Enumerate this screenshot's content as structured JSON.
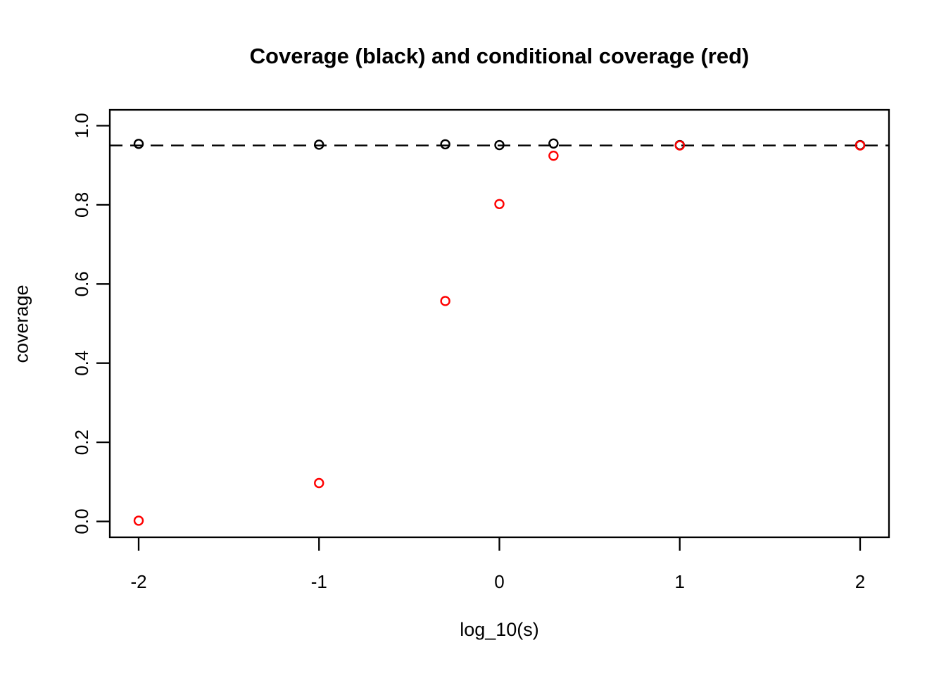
{
  "chart_data": {
    "type": "scatter",
    "title": "Coverage (black) and conditional coverage (red)",
    "xlabel": "log_10(s)",
    "ylabel": "coverage",
    "grid": false,
    "legend_position": "none",
    "xlim": [
      -2.16,
      2.16
    ],
    "ylim": [
      -0.04,
      1.04
    ],
    "x_ticks": {
      "values": [
        -2,
        -1,
        0,
        1,
        2
      ],
      "labels": [
        "-2",
        "-1",
        "0",
        "1",
        "2"
      ]
    },
    "y_ticks": {
      "values": [
        0.0,
        0.2,
        0.4,
        0.6,
        0.8,
        1.0
      ],
      "labels": [
        "0.0",
        "0.2",
        "0.4",
        "0.6",
        "0.8",
        "1.0"
      ]
    },
    "reference_line": {
      "y": 0.95,
      "style": "dashed",
      "color": "#000000"
    },
    "marker": "open-circle",
    "x": [
      -2,
      -1,
      -0.3,
      0,
      0.3,
      1,
      2
    ],
    "series": [
      {
        "name": "coverage",
        "color": "#000000",
        "values": [
          0.954,
          0.952,
          0.953,
          0.951,
          0.955,
          0.951,
          0.951
        ]
      },
      {
        "name": "conditional coverage",
        "color": "#ff0000",
        "values": [
          0.002,
          0.097,
          0.557,
          0.802,
          0.924,
          0.95,
          0.95
        ]
      }
    ]
  },
  "colors": {
    "background": "#ffffff",
    "foreground": "#000000",
    "accent_red": "#ff0000"
  }
}
